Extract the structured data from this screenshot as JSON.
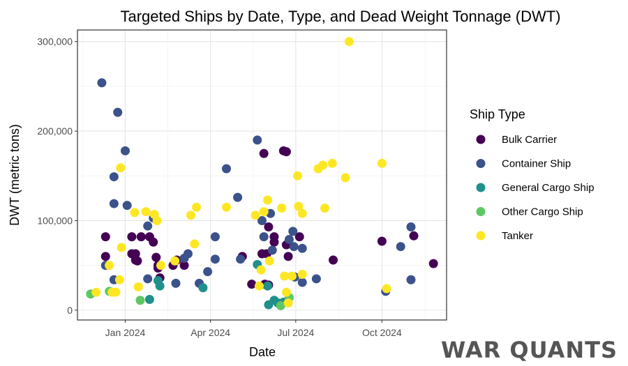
{
  "chart_data": {
    "type": "scatter",
    "title": "Targeted Ships by Date, Type, and Dead Weight Tonnage (DWT)",
    "xlabel": "Date",
    "ylabel": "DWT (metric tons)",
    "x_ticks": [
      {
        "date": "2024-01-01",
        "label": "Jan 2024"
      },
      {
        "date": "2024-04-01",
        "label": "Apr 2024"
      },
      {
        "date": "2024-07-01",
        "label": "Jul 2024"
      },
      {
        "date": "2024-10-01",
        "label": "Oct 2024"
      }
    ],
    "y_ticks": [
      {
        "value": 0,
        "label": "0"
      },
      {
        "value": 100000,
        "label": "100,000"
      },
      {
        "value": 200000,
        "label": "200,000"
      },
      {
        "value": 300000,
        "label": "300,000"
      }
    ],
    "xlim": [
      "2023-11-11",
      "2024-12-09"
    ],
    "ylim": [
      -11000,
      313000
    ],
    "grid": true,
    "legend": {
      "title": "Ship Type",
      "position": "right"
    },
    "series": [
      {
        "name": "Bulk Carrier",
        "color": "#440154",
        "points": [
          [
            "2023-12-11",
            82000
          ],
          [
            "2023-12-11",
            60000
          ],
          [
            "2024-01-08",
            82000
          ],
          [
            "2024-01-08",
            63000
          ],
          [
            "2024-01-12",
            63000
          ],
          [
            "2024-01-12",
            56000
          ],
          [
            "2024-01-14",
            55000
          ],
          [
            "2024-01-18",
            82000
          ],
          [
            "2024-01-27",
            82000
          ],
          [
            "2024-01-31",
            76000
          ],
          [
            "2024-02-03",
            59000
          ],
          [
            "2024-02-05",
            50000
          ],
          [
            "2024-02-05",
            47000
          ],
          [
            "2024-02-07",
            36000
          ],
          [
            "2024-02-21",
            50000
          ],
          [
            "2024-02-25",
            56000
          ],
          [
            "2024-03-04",
            50000
          ],
          [
            "2024-05-05",
            60000
          ],
          [
            "2024-05-15",
            29000
          ],
          [
            "2024-05-28",
            175000
          ],
          [
            "2024-05-26",
            63000
          ],
          [
            "2024-05-31",
            63000
          ],
          [
            "2024-05-29",
            29000
          ],
          [
            "2024-06-02",
            93000
          ],
          [
            "2024-06-02",
            28000
          ],
          [
            "2024-06-08",
            82000
          ],
          [
            "2024-06-08",
            76000
          ],
          [
            "2024-06-18",
            178000
          ],
          [
            "2024-06-21",
            177000
          ],
          [
            "2024-06-21",
            73000
          ],
          [
            "2024-06-23",
            60000
          ],
          [
            "2024-07-05",
            82000
          ],
          [
            "2024-08-10",
            56000
          ],
          [
            "2024-10-01",
            77000
          ],
          [
            "2024-11-04",
            83000
          ],
          [
            "2024-11-25",
            52000
          ]
        ]
      },
      {
        "name": "Container Ship",
        "color": "#3b528b",
        "points": [
          [
            "2023-12-07",
            254000
          ],
          [
            "2023-12-11",
            50000
          ],
          [
            "2023-12-20",
            149000
          ],
          [
            "2023-12-20",
            119000
          ],
          [
            "2023-12-20",
            34000
          ],
          [
            "2023-12-24",
            221000
          ],
          [
            "2024-01-01",
            178000
          ],
          [
            "2024-01-03",
            117000
          ],
          [
            "2024-01-25",
            94000
          ],
          [
            "2024-01-25",
            35000
          ],
          [
            "2024-01-31",
            103000
          ],
          [
            "2024-02-24",
            30000
          ],
          [
            "2024-03-04",
            58000
          ],
          [
            "2024-03-08",
            63000
          ],
          [
            "2024-03-20",
            30000
          ],
          [
            "2024-03-29",
            43000
          ],
          [
            "2024-04-06",
            82000
          ],
          [
            "2024-04-06",
            57000
          ],
          [
            "2024-04-18",
            158000
          ],
          [
            "2024-04-30",
            126000
          ],
          [
            "2024-05-03",
            57000
          ],
          [
            "2024-05-21",
            190000
          ],
          [
            "2024-05-26",
            100000
          ],
          [
            "2024-05-28",
            82000
          ],
          [
            "2024-06-04",
            108000
          ],
          [
            "2024-06-06",
            67000
          ],
          [
            "2024-06-24",
            79000
          ],
          [
            "2024-06-28",
            88000
          ],
          [
            "2024-06-29",
            71000
          ],
          [
            "2024-06-30",
            37000
          ],
          [
            "2024-07-08",
            31000
          ],
          [
            "2024-07-08",
            69000
          ],
          [
            "2024-07-23",
            35000
          ],
          [
            "2024-10-05",
            21000
          ],
          [
            "2024-10-21",
            71000
          ],
          [
            "2024-11-01",
            93000
          ],
          [
            "2024-11-01",
            34000
          ]
        ]
      },
      {
        "name": "General Cargo Ship",
        "color": "#21908c",
        "points": [
          [
            "2024-01-27",
            12000
          ],
          [
            "2024-02-05",
            33000
          ],
          [
            "2024-02-07",
            27000
          ],
          [
            "2024-03-24",
            25000
          ],
          [
            "2024-05-21",
            51000
          ],
          [
            "2024-06-01",
            27000
          ],
          [
            "2024-06-02",
            6000
          ],
          [
            "2024-06-08",
            11000
          ],
          [
            "2024-06-12",
            8000
          ],
          [
            "2024-06-18",
            9000
          ]
        ]
      },
      {
        "name": "Other Cargo Ship",
        "color": "#5dc863",
        "points": [
          [
            "2023-11-25",
            18000
          ],
          [
            "2023-12-15",
            21000
          ],
          [
            "2024-01-17",
            11000
          ],
          [
            "2024-06-15",
            5000
          ],
          [
            "2024-06-24",
            14000
          ]
        ]
      },
      {
        "name": "Tanker",
        "color": "#fde725",
        "points": [
          [
            "2023-12-01",
            20000
          ],
          [
            "2023-12-15",
            50000
          ],
          [
            "2023-12-18",
            20000
          ],
          [
            "2023-12-22",
            20000
          ],
          [
            "2023-12-26",
            34000
          ],
          [
            "2023-12-27",
            159000
          ],
          [
            "2023-12-28",
            70000
          ],
          [
            "2024-01-11",
            109000
          ],
          [
            "2024-01-15",
            26000
          ],
          [
            "2024-01-23",
            110000
          ],
          [
            "2024-02-01",
            107000
          ],
          [
            "2024-02-04",
            100000
          ],
          [
            "2024-02-08",
            50000
          ],
          [
            "2024-02-23",
            55000
          ],
          [
            "2024-03-11",
            106000
          ],
          [
            "2024-03-17",
            115000
          ],
          [
            "2024-03-15",
            74000
          ],
          [
            "2024-04-18",
            115000
          ],
          [
            "2024-05-19",
            106000
          ],
          [
            "2024-05-23",
            27000
          ],
          [
            "2024-05-25",
            45000
          ],
          [
            "2024-05-28",
            110000
          ],
          [
            "2024-06-01",
            123000
          ],
          [
            "2024-06-03",
            55000
          ],
          [
            "2024-06-16",
            114000
          ],
          [
            "2024-06-19",
            38000
          ],
          [
            "2024-06-21",
            20000
          ],
          [
            "2024-06-23",
            8000
          ],
          [
            "2024-06-27",
            38000
          ],
          [
            "2024-07-03",
            150000
          ],
          [
            "2024-07-04",
            116000
          ],
          [
            "2024-07-08",
            108000
          ],
          [
            "2024-07-08",
            40000
          ],
          [
            "2024-07-25",
            158000
          ],
          [
            "2024-07-30",
            162000
          ],
          [
            "2024-08-01",
            114000
          ],
          [
            "2024-08-09",
            164000
          ],
          [
            "2024-08-23",
            148000
          ],
          [
            "2024-08-27",
            300000
          ],
          [
            "2024-10-01",
            164000
          ],
          [
            "2024-10-06",
            24000
          ]
        ]
      }
    ]
  },
  "brand": {
    "text": "WAR QUANTS",
    "color": "#555555"
  }
}
